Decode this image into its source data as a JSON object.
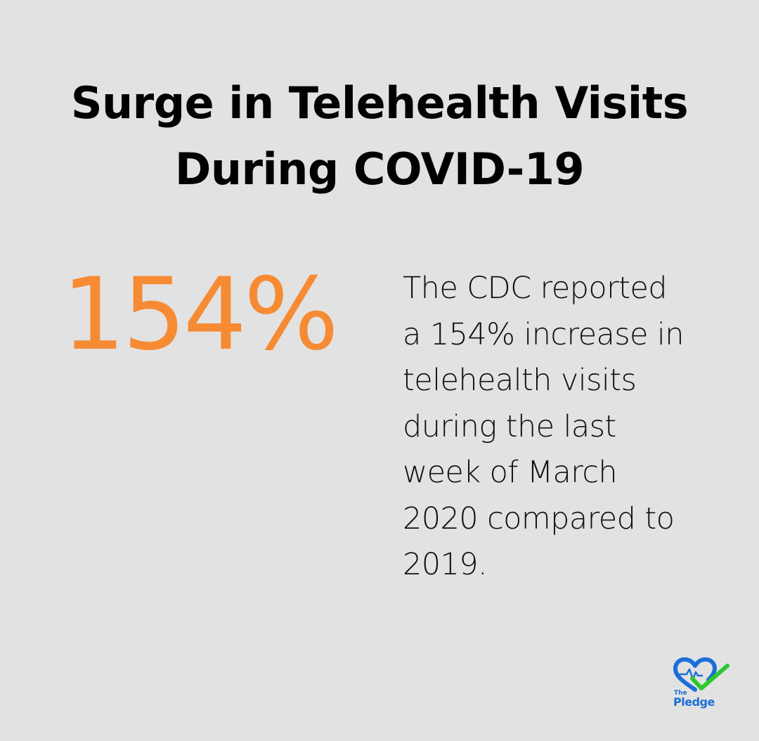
{
  "title": {
    "line1": "Surge in Telehealth Visits",
    "line2": "During COVID-19"
  },
  "stat": {
    "value": "154%",
    "color": "#f68b34"
  },
  "description": {
    "lines": [
      "The CDC reported",
      "a 154% increase in",
      "telehealth visits",
      "during the last",
      "week of March",
      "2020 compared to",
      "2019."
    ]
  },
  "logo": {
    "text_small": "The",
    "text_large": "Pledge",
    "icon": "heart-heartbeat-checkmark-icon",
    "colors": {
      "blue": "#1c6fd8",
      "green": "#2ec82e"
    }
  },
  "colors": {
    "background": "#e1e2e1",
    "text": "#000000"
  }
}
